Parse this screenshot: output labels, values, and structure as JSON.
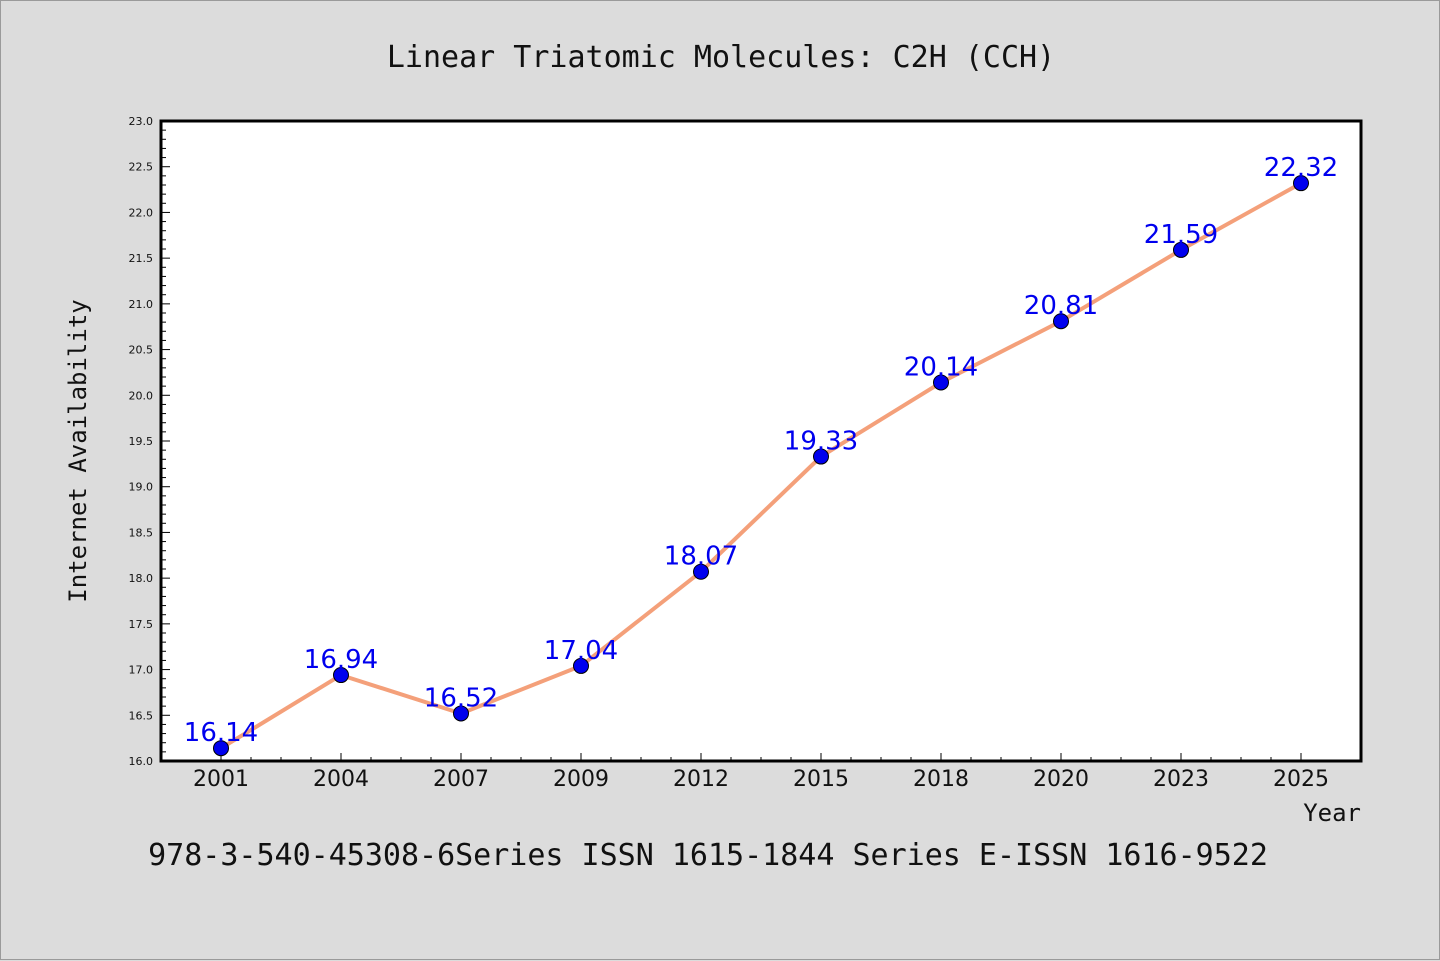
{
  "chart_data": {
    "type": "line",
    "title": "Linear Triatomic Molecules: C2H (CCH)",
    "xlabel": "Year",
    "ylabel": "Internet Availability",
    "categories": [
      "2001",
      "2004",
      "2007",
      "2009",
      "2012",
      "2015",
      "2018",
      "2020",
      "2023",
      "2025"
    ],
    "values": [
      16.14,
      16.94,
      16.52,
      17.04,
      18.07,
      19.33,
      20.14,
      20.81,
      21.59,
      22.32
    ],
    "data_labels": [
      "16.14",
      "16.94",
      "16.52",
      "17.04",
      "18.07",
      "19.33",
      "20.14",
      "20.81",
      "21.59",
      "22.32"
    ],
    "ylim": [
      16.0,
      23.0
    ],
    "yticks": [
      "16.0",
      "16.5",
      "17.0",
      "17.5",
      "18.0",
      "18.5",
      "19.0",
      "19.5",
      "20.0",
      "20.5",
      "21.0",
      "21.5",
      "22.0",
      "22.5",
      "23.0"
    ],
    "grid": false,
    "legend": "none",
    "line_color": "#f4a07a",
    "marker_color": "#0000ee",
    "label_color": "#0000ee",
    "footer": "978-3-540-45308-6Series ISSN 1615-1844 Series E-ISSN 1616-9522"
  }
}
